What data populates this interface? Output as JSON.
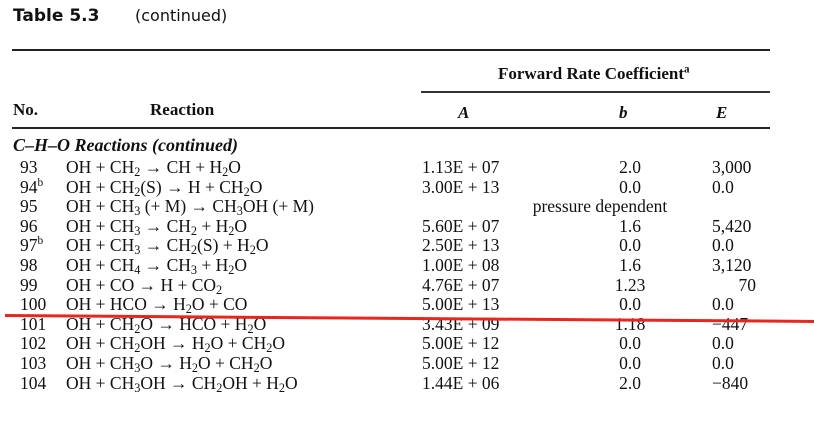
{
  "table": {
    "label": "Table 5.3",
    "subtitle": "(continued)",
    "group_header": "Forward Rate Coefficient",
    "group_header_footnote": "a",
    "columns": {
      "no": "No.",
      "reaction": "Reaction",
      "A": "A",
      "b": "b",
      "E": "E"
    },
    "section_title": "C–H–O Reactions (continued)",
    "rows": [
      {
        "no": "93",
        "footnote": "",
        "reaction_html": "OH + CH<sub>2</sub> → CH + H<sub>2</sub>O",
        "reaction": "OH + CH2 → CH + H2O",
        "A": "1.13E + 07",
        "b": "2.0",
        "E": "3,000"
      },
      {
        "no": "94",
        "footnote": "b",
        "reaction_html": "OH + CH<sub>2</sub>(S) → H + CH<sub>2</sub>O",
        "reaction": "OH + CH2(S) → H + CH2O",
        "A": "3.00E + 13",
        "b": "0.0",
        "E": "0.0"
      },
      {
        "no": "95",
        "footnote": "",
        "reaction_html": "OH + CH<sub>3</sub> (+ M) → CH<sub>3</sub>OH (+ M)",
        "reaction": "OH + CH3 (+ M) → CH3OH (+ M)",
        "span_note": "pressure dependent"
      },
      {
        "no": "96",
        "footnote": "",
        "reaction_html": "OH + CH<sub>3</sub> → CH<sub>2</sub> + H<sub>2</sub>O",
        "reaction": "OH + CH3 → CH2 + H2O",
        "A": "5.60E + 07",
        "b": "1.6",
        "E": "5,420"
      },
      {
        "no": "97",
        "footnote": "b",
        "reaction_html": "OH + CH<sub>3</sub> → CH<sub>2</sub>(S) + H<sub>2</sub>O",
        "reaction": "OH + CH3 → CH2(S) + H2O",
        "A": "2.50E + 13",
        "b": "0.0",
        "E": "0.0"
      },
      {
        "no": "98",
        "footnote": "",
        "reaction_html": "OH + CH<sub>4</sub> → CH<sub>3</sub> + H<sub>2</sub>O",
        "reaction": "OH + CH4 → CH3 + H2O",
        "A": "1.00E + 08",
        "b": "1.6",
        "E": "3,120"
      },
      {
        "no": "99",
        "footnote": "",
        "reaction_html": "OH + CO → H + CO<sub>2</sub>",
        "reaction": "OH + CO → H + CO2",
        "A": "4.76E + 07",
        "b": "1.23",
        "E": "70",
        "e_align": "right"
      },
      {
        "no": "100",
        "footnote": "",
        "reaction_html": "OH + HCO → H<sub>2</sub>O + CO",
        "reaction": "OH + HCO → H2O + CO",
        "A": "5.00E + 13",
        "b": "0.0",
        "E": "0.0"
      },
      {
        "no": "101",
        "footnote": "",
        "reaction_html": "OH + CH<sub>2</sub>O → HCO + H<sub>2</sub>O",
        "reaction": "OH + CH2O → HCO + H2O",
        "A": "3.43E + 09",
        "b": "1.18",
        "E": "−447"
      },
      {
        "no": "102",
        "footnote": "",
        "reaction_html": "OH + CH<sub>2</sub>OH → H<sub>2</sub>O + CH<sub>2</sub>O",
        "reaction": "OH + CH2OH → H2O + CH2O",
        "A": "5.00E + 12",
        "b": "0.0",
        "E": "0.0"
      },
      {
        "no": "103",
        "footnote": "",
        "reaction_html": "OH + CH<sub>3</sub>O → H<sub>2</sub>O + CH<sub>2</sub>O",
        "reaction": "OH + CH3O → H2O + CH2O",
        "A": "5.00E + 12",
        "b": "0.0",
        "E": "0.0"
      },
      {
        "no": "104",
        "footnote": "",
        "reaction_html": "OH + CH<sub>3</sub>OH → CH<sub>2</sub>OH + H<sub>2</sub>O",
        "reaction": "OH + CH3OH → CH2OH + H2O",
        "A": "1.44E + 06",
        "b": "2.0",
        "E": "−840"
      }
    ]
  },
  "annotation": {
    "type": "red-underline",
    "color": "#e8261f",
    "below_row": "99"
  }
}
